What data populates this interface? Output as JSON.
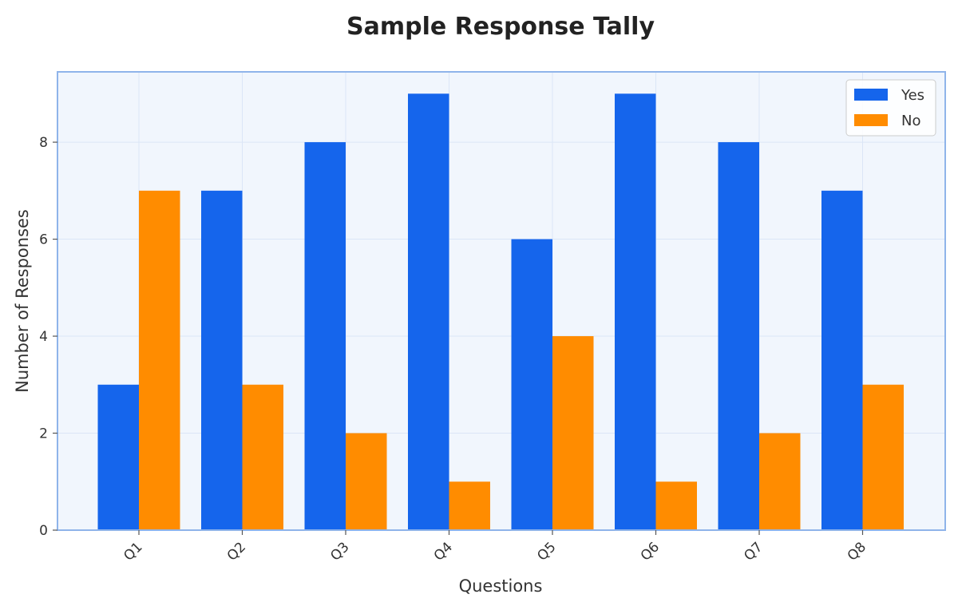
{
  "chart_data": {
    "type": "bar",
    "title": "Sample Response Tally",
    "xlabel": "Questions",
    "ylabel": "Number of Responses",
    "categories": [
      "Q1",
      "Q2",
      "Q3",
      "Q4",
      "Q5",
      "Q6",
      "Q7",
      "Q8"
    ],
    "series": [
      {
        "name": "Yes",
        "color": "#1565ec",
        "values": [
          3,
          7,
          8,
          9,
          6,
          9,
          8,
          7
        ]
      },
      {
        "name": "No",
        "color": "#ff8c00",
        "values": [
          7,
          3,
          2,
          1,
          4,
          1,
          2,
          3
        ]
      }
    ],
    "ylim": [
      0,
      9.45
    ],
    "yticks": [
      0,
      2,
      4,
      6,
      8
    ],
    "grid": true,
    "legend": "top-right",
    "background_color": "#f1f6fd",
    "frame_color": "#8fb4ea"
  }
}
